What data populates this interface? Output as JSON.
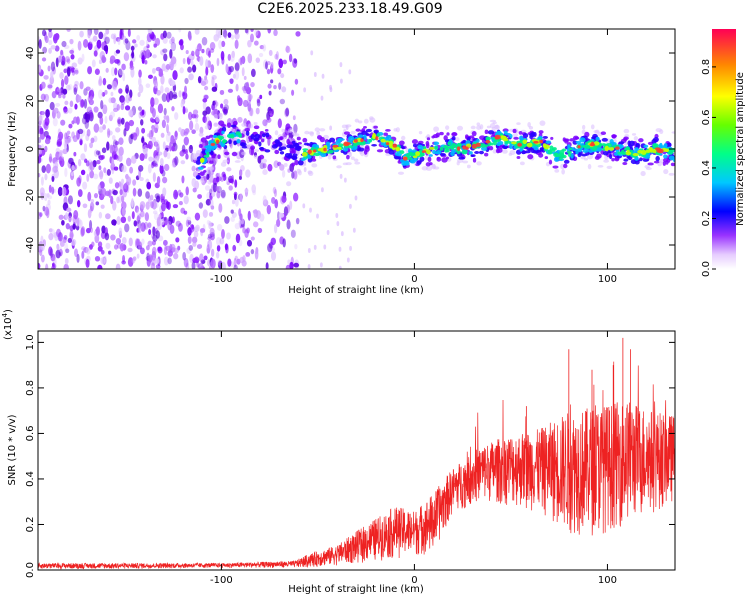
{
  "title": "C2E6.2025.233.18.49.G09",
  "chart_data": [
    {
      "type": "heatmap",
      "name": "spectrogram",
      "xlabel": "Height of straight line (km)",
      "ylabel": "Frequency (Hz)",
      "xlim": [
        -195,
        135
      ],
      "ylim": [
        -50,
        50
      ],
      "xticks": [
        -100,
        0,
        100
      ],
      "yticks": [
        -40,
        -20,
        0,
        20,
        40
      ],
      "xtick_labels": [
        "-100",
        "0",
        "100"
      ],
      "ytick_labels": [
        "-40",
        "-20",
        "0",
        "20",
        "40"
      ],
      "colorbar": {
        "label": "Normalized spectral amplitude",
        "range": [
          0,
          0.95
        ],
        "ticks": [
          "0.0",
          "0.2",
          "0.4",
          "0.6",
          "0.8"
        ],
        "colors": [
          "#ffffff",
          "#d9b3ff",
          "#8000ff",
          "#0000ff",
          "#00c8ff",
          "#00ff80",
          "#80ff00",
          "#ffff00",
          "#ff8000",
          "#ff0040"
        ]
      },
      "noise_region_end_x": -60,
      "ridge": [
        {
          "x": -112,
          "y": -8
        },
        {
          "x": -105,
          "y": 2
        },
        {
          "x": -95,
          "y": 6
        },
        {
          "x": -58,
          "y": -2
        },
        {
          "x": -45,
          "y": 0
        },
        {
          "x": -30,
          "y": 3
        },
        {
          "x": -20,
          "y": 5
        },
        {
          "x": -10,
          "y": 1
        },
        {
          "x": -5,
          "y": -4
        },
        {
          "x": 5,
          "y": -1
        },
        {
          "x": 15,
          "y": 1
        },
        {
          "x": 25,
          "y": 0
        },
        {
          "x": 35,
          "y": 2
        },
        {
          "x": 45,
          "y": 5
        },
        {
          "x": 55,
          "y": 2
        },
        {
          "x": 65,
          "y": 3
        },
        {
          "x": 75,
          "y": -3
        },
        {
          "x": 85,
          "y": 1
        },
        {
          "x": 95,
          "y": 2
        },
        {
          "x": 105,
          "y": 0
        },
        {
          "x": 115,
          "y": -2
        },
        {
          "x": 125,
          "y": 0
        },
        {
          "x": 135,
          "y": -2
        }
      ]
    },
    {
      "type": "line",
      "name": "snr",
      "xlabel": "Height of straight line (km)",
      "ylabel": "SNR (10 * v/v)",
      "multiplier_label": "(x10",
      "multiplier_exp": "4",
      "multiplier_close": ")",
      "xlim": [
        -195,
        135
      ],
      "ylim": [
        0,
        1.05
      ],
      "xticks": [
        -100,
        0,
        100
      ],
      "yticks": [
        0,
        0.2,
        0.4,
        0.6,
        0.8,
        1.0
      ],
      "xtick_labels": [
        "-100",
        "0",
        "100"
      ],
      "ytick_labels": [
        "0.0",
        "0.2",
        "0.4",
        "0.6",
        "0.8",
        "1.0"
      ],
      "color": "#ee2222",
      "envelope": [
        {
          "x": -195,
          "low": 0.005,
          "high": 0.03
        },
        {
          "x": -150,
          "low": 0.005,
          "high": 0.03
        },
        {
          "x": -100,
          "low": 0.01,
          "high": 0.03
        },
        {
          "x": -62,
          "low": 0.01,
          "high": 0.04
        },
        {
          "x": -55,
          "low": 0.01,
          "high": 0.07
        },
        {
          "x": -40,
          "low": 0.02,
          "high": 0.11
        },
        {
          "x": -25,
          "low": 0.03,
          "high": 0.2
        },
        {
          "x": -10,
          "low": 0.05,
          "high": 0.28
        },
        {
          "x": 0,
          "low": 0.06,
          "high": 0.26
        },
        {
          "x": 10,
          "low": 0.07,
          "high": 0.34
        },
        {
          "x": 20,
          "low": 0.25,
          "high": 0.45
        },
        {
          "x": 35,
          "low": 0.3,
          "high": 0.55
        },
        {
          "x": 50,
          "low": 0.28,
          "high": 0.6
        },
        {
          "x": 65,
          "low": 0.25,
          "high": 0.62
        },
        {
          "x": 80,
          "low": 0.15,
          "high": 0.7
        },
        {
          "x": 95,
          "low": 0.15,
          "high": 0.72
        },
        {
          "x": 110,
          "low": 0.2,
          "high": 0.75
        },
        {
          "x": 125,
          "low": 0.25,
          "high": 0.7
        },
        {
          "x": 135,
          "low": 0.3,
          "high": 0.68
        }
      ],
      "peaks": [
        {
          "x": 80,
          "y": 0.97
        },
        {
          "x": 92,
          "y": 0.88
        },
        {
          "x": 103,
          "y": 0.9
        },
        {
          "x": 108,
          "y": 1.02
        },
        {
          "x": 112,
          "y": 0.97
        },
        {
          "x": 58,
          "y": 0.72
        }
      ]
    }
  ]
}
